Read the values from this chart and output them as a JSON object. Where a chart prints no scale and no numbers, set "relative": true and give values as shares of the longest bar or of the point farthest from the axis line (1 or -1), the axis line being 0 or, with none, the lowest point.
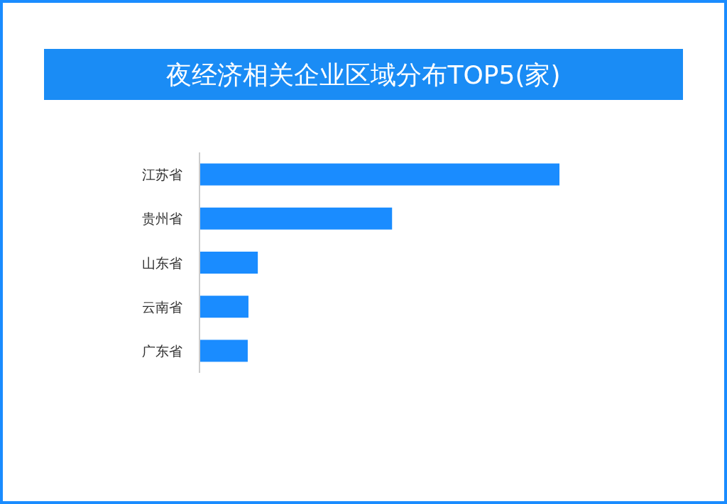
{
  "chart_data": {
    "type": "bar",
    "orientation": "horizontal",
    "relative": true,
    "title": "夜经济相关企业区域分布TOP5(家)",
    "categories": [
      "江苏省",
      "贵州省",
      "山东省",
      "云南省",
      "广东省"
    ],
    "values": [
      1,
      0.535,
      0.162,
      0.136,
      0.134
    ],
    "color": "#1a8cff"
  }
}
